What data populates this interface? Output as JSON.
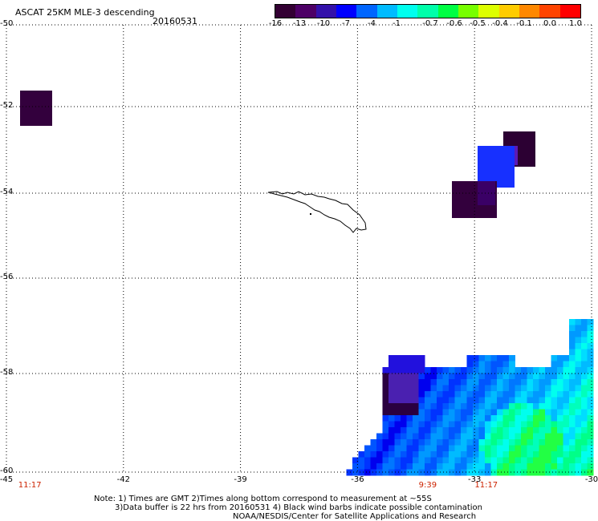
{
  "header": {
    "title": "ASCAT 25KM MLE-3 descending",
    "date": "20160531"
  },
  "colorbar": {
    "colors": [
      "#330033",
      "#4d0066",
      "#3311aa",
      "#0000ff",
      "#0066ff",
      "#00bbff",
      "#00ffee",
      "#00ffaa",
      "#00ff44",
      "#77ff00",
      "#ddff00",
      "#ffcc00",
      "#ff8800",
      "#ff4400",
      "#ff0000"
    ],
    "labels": [
      "-16",
      "-13",
      "-10",
      "-7",
      "-4",
      "-1",
      "-0.7",
      "-0.6",
      "-0.5",
      "-0.4",
      "-0.1",
      "0.0",
      "1.0"
    ]
  },
  "map": {
    "lat_labels": [
      "-50",
      "-52",
      "-54",
      "-56",
      "-58",
      "-60"
    ],
    "lon_labels": [
      "-45",
      "-42",
      "-39",
      "-36",
      "-33",
      "-30"
    ],
    "times": [
      {
        "lon": -44.4,
        "text": "11:17"
      },
      {
        "lon": -34.2,
        "text": "9:39"
      },
      {
        "lon": -32.7,
        "text": "11:17"
      }
    ]
  },
  "footer": {
    "line1": "Note: 1) Times are GMT 2)Times along bottom correspond to measurement at ~55S",
    "line2": "3)Data buffer is 22 hrs from 20160531 4) Black wind barbs indicate possible contamination",
    "line3": "NOAA/NESDIS/Center for Satellite Applications and Research"
  }
}
